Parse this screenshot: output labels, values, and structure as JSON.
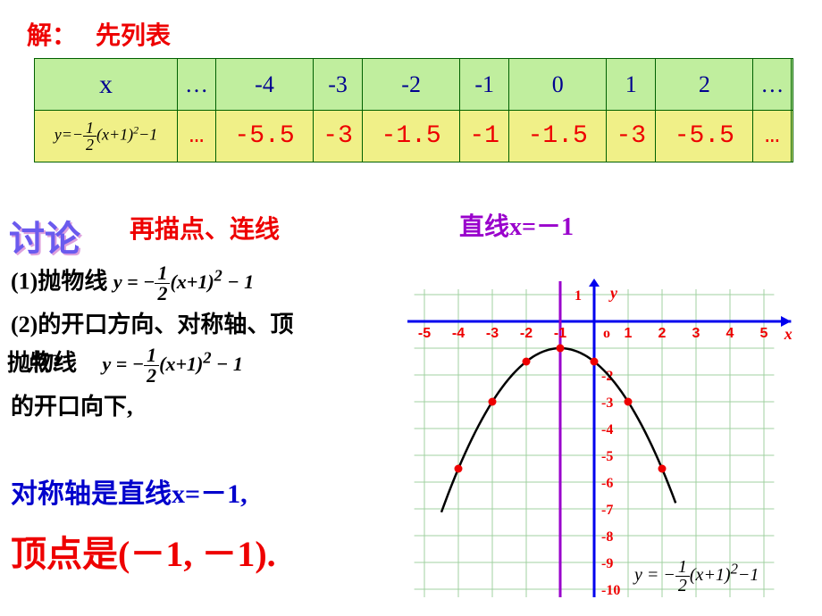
{
  "header": {
    "solve": "解：",
    "first_table": "先列表"
  },
  "table": {
    "row1": [
      "x",
      "…",
      "-4",
      "-3",
      "-2",
      "-1",
      "0",
      "1",
      "2",
      "…",
      ""
    ],
    "row2_formula_tex": "y = -\\frac{1}{2}(x+1)^2 - 1",
    "row2": [
      "…",
      "-5.5",
      "-3",
      "-1.5",
      "-1",
      "-1.5",
      "-3",
      "-5.5",
      "…",
      ""
    ]
  },
  "discuss": "讨论",
  "plot_txt": "再描点、连线",
  "axis_label": "直线x=－1",
  "left": {
    "l1a": "(1)抛物线",
    "l1b": "y = -½(x+1)² - 1",
    "l2": "(2)的开口方向、对称轴、顶",
    "l3a": "抛物线",
    "l3a_cut": "抛物线",
    "l3b": "y = -½(x+1)² - 1",
    "l4": "的开口向下,",
    "sym": "对称轴是直线x=－1,",
    "vertex": "顶点是(－1, －1)."
  },
  "chart": {
    "type": "parabola",
    "x_range": [
      -5,
      5
    ],
    "y_range": [
      -10,
      1
    ],
    "grid_step": 1,
    "grid_color": "#a0d0a0",
    "bg_color": "#ffffff",
    "axis_color": "#0000ee",
    "sym_axis_x": -1,
    "sym_axis_color": "#9900cc",
    "point_color": "#ee0000",
    "curve_color": "#000000",
    "x_ticks": [
      -5,
      -4,
      -3,
      -2,
      -1,
      1,
      2,
      3,
      4,
      5
    ],
    "y_ticks_pos": [
      1
    ],
    "y_ticks_neg": [
      -2,
      -3,
      -4,
      -5,
      -6,
      -7,
      -8,
      -9,
      -10
    ],
    "tick_color": "#ee0000",
    "y_label": "y",
    "x_label": "x",
    "origin": "o",
    "points": [
      [
        -4,
        -5.5
      ],
      [
        -3,
        -3
      ],
      [
        -2,
        -1.5
      ],
      [
        -1,
        -1
      ],
      [
        0,
        -1.5
      ],
      [
        1,
        -3
      ],
      [
        2,
        -5.5
      ]
    ],
    "formula_label": "y = -½(x+1)² - 1"
  }
}
